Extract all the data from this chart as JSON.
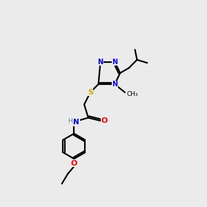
{
  "background_color": "#ebebeb",
  "atom_colors": {
    "N": "#0000ee",
    "S": "#ccaa00",
    "O": "#ee0000",
    "H": "#448888",
    "C": "#000000"
  },
  "figsize": [
    3.0,
    3.0
  ],
  "dpi": 100
}
